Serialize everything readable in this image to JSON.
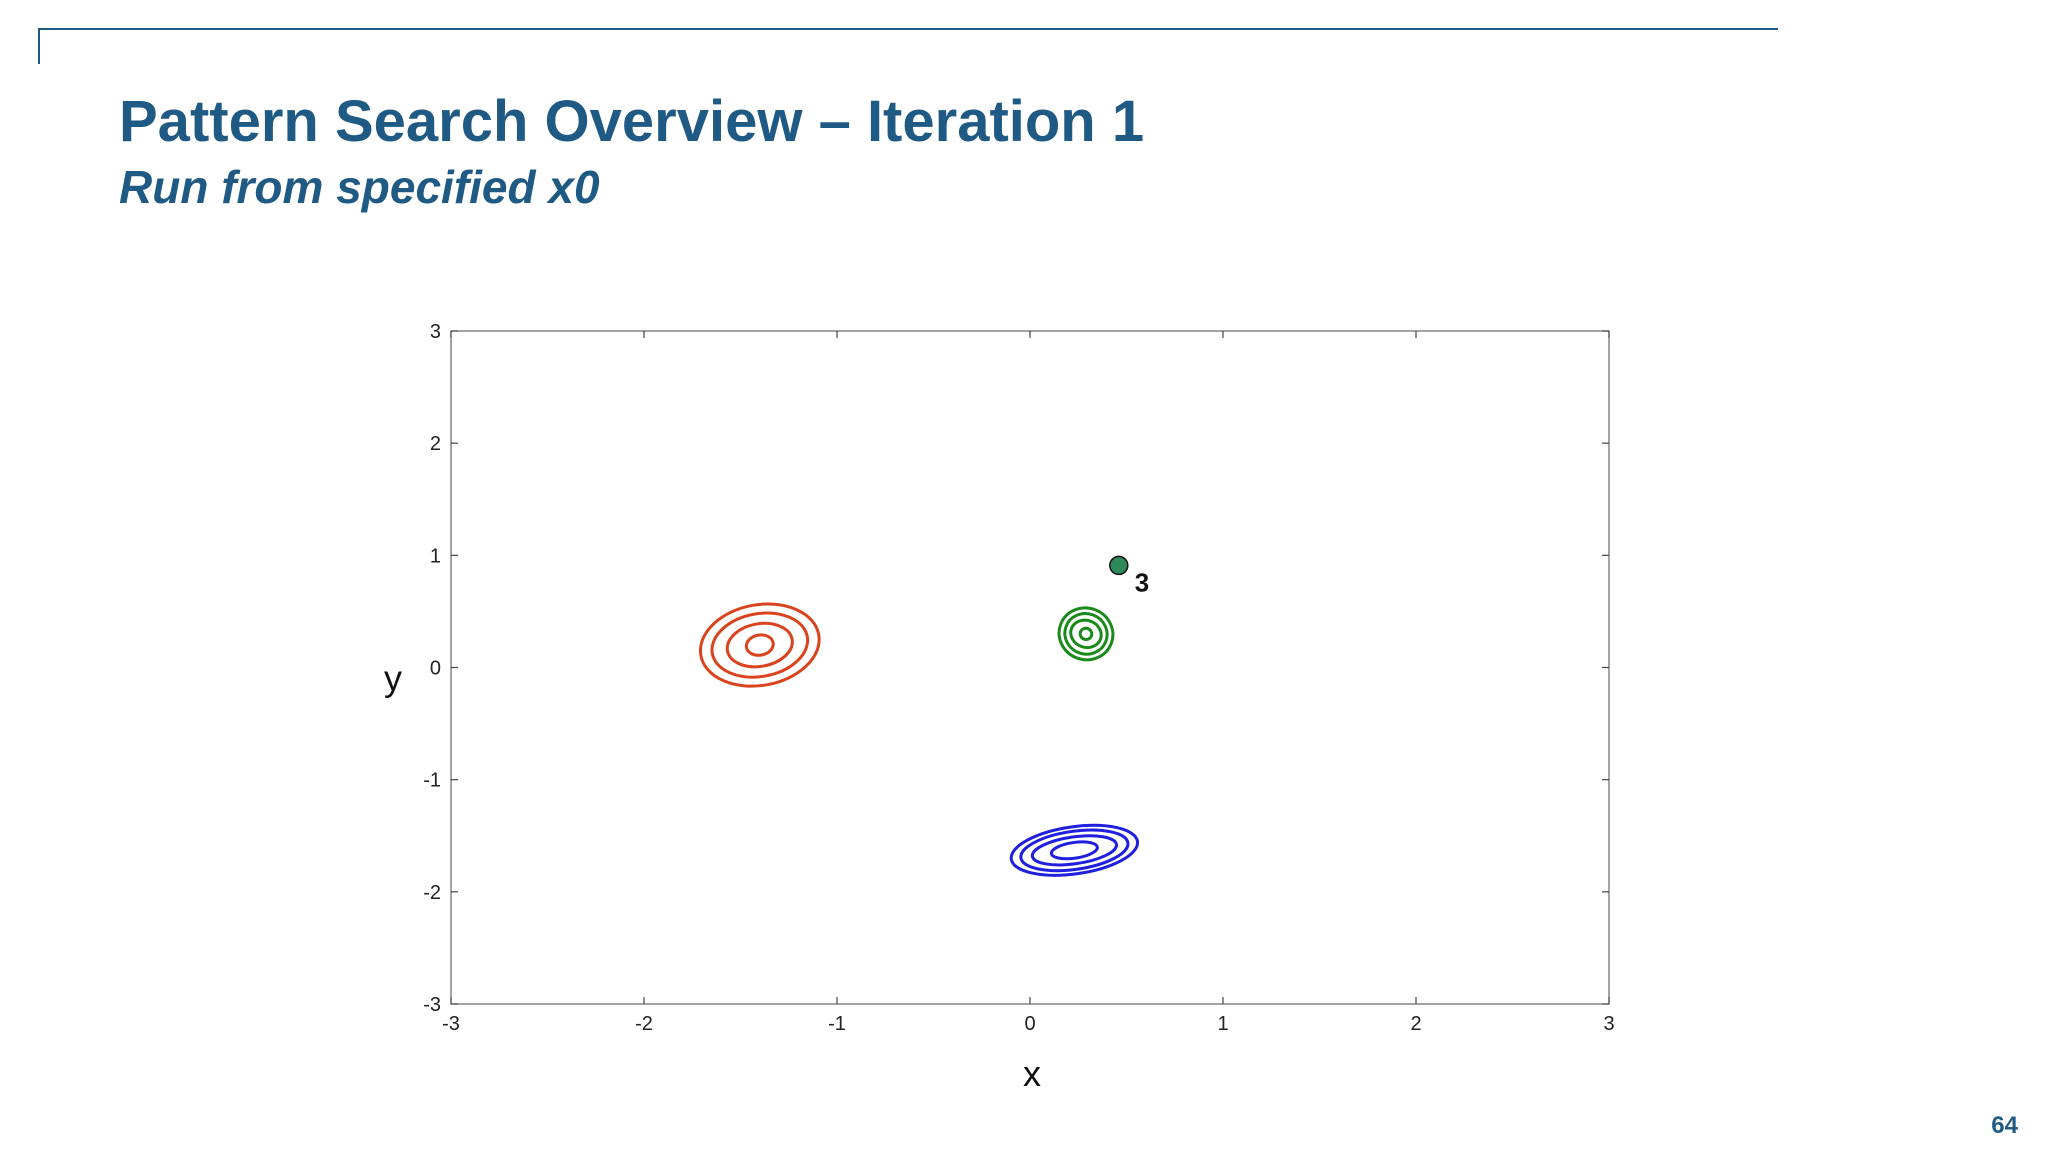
{
  "slide": {
    "title": "Pattern Search Overview – Iteration 1",
    "subtitle": "Run from specified x0",
    "page_number": "64"
  },
  "chart_data": {
    "type": "scatter",
    "title": "",
    "xlabel": "x",
    "ylabel": "y",
    "xlim": [
      -3,
      3
    ],
    "ylim": [
      -3,
      3
    ],
    "xticks": [
      -3,
      -2,
      -1,
      0,
      1,
      2,
      3
    ],
    "yticks": [
      -3,
      -2,
      -1,
      0,
      1,
      2,
      3
    ],
    "grid": false,
    "contour_groups": [
      {
        "color": "#d9441e",
        "center": [
          -1.4,
          0.2
        ],
        "rings": [
          {
            "rx": 0.07,
            "ry": 0.09,
            "angle": -10
          },
          {
            "rx": 0.17,
            "ry": 0.19,
            "angle": -10
          },
          {
            "rx": 0.25,
            "ry": 0.28,
            "angle": -10
          },
          {
            "rx": 0.31,
            "ry": 0.36,
            "angle": -10
          }
        ]
      },
      {
        "color": "#1a8a1a",
        "center": [
          0.29,
          0.3
        ],
        "rings": [
          {
            "rx": 0.03,
            "ry": 0.05,
            "angle": 20
          },
          {
            "rx": 0.08,
            "ry": 0.12,
            "angle": 20
          },
          {
            "rx": 0.11,
            "ry": 0.18,
            "angle": 20
          },
          {
            "rx": 0.14,
            "ry": 0.23,
            "angle": 20
          }
        ]
      },
      {
        "color": "#1f1fe0",
        "center": [
          0.23,
          -1.63
        ],
        "rings": [
          {
            "rx": 0.12,
            "ry": 0.07,
            "angle": -8
          },
          {
            "rx": 0.22,
            "ry": 0.12,
            "angle": -8
          },
          {
            "rx": 0.28,
            "ry": 0.17,
            "angle": -8
          },
          {
            "rx": 0.33,
            "ry": 0.21,
            "angle": -8
          }
        ]
      }
    ],
    "points": [
      {
        "x": 0.46,
        "y": 0.91,
        "label": "3",
        "color": "#2e8b57"
      }
    ]
  }
}
